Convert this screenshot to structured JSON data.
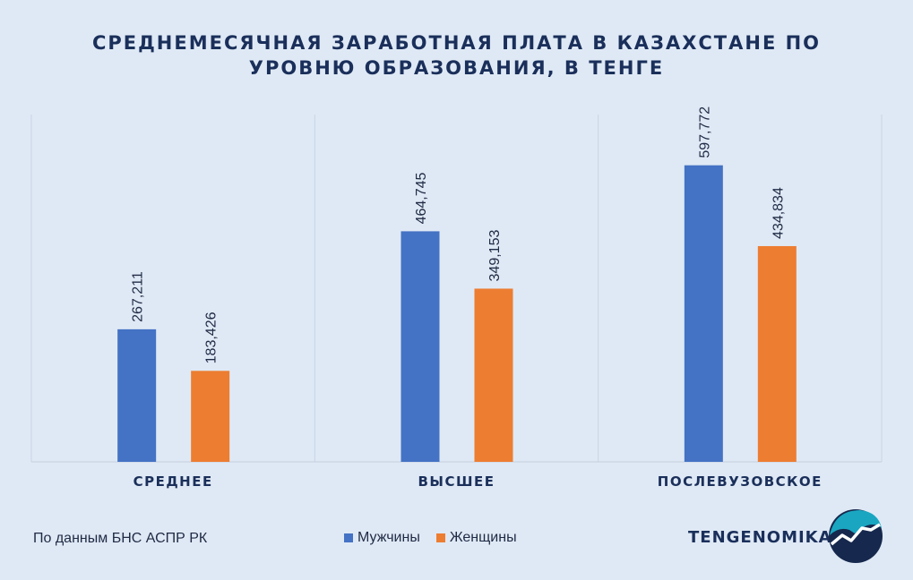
{
  "title_lines": [
    "СРЕДНЕМЕСЯЧНАЯ ЗАРАБОТНАЯ ПЛАТА В КАЗАХСТАНЕ ПО",
    "УРОВНЮ ОБРАЗОВАНИЯ, В ТЕНГЕ"
  ],
  "source": "По данным БНС АСПР РК",
  "brand": "TENGENOMIKA",
  "chart_data": {
    "type": "bar",
    "title": "СРЕДНЕМЕСЯЧНАЯ ЗАРАБОТНАЯ ПЛАТА В КАЗАХСТАНЕ ПО УРОВНЮ ОБРАЗОВАНИЯ, В ТЕНГЕ",
    "categories": [
      "СРЕДНЕЕ",
      "ВЫСШЕЕ",
      "ПОСЛЕВУЗОВСКОЕ"
    ],
    "series": [
      {
        "name": "Мужчины",
        "color": "#4472c4",
        "values": [
          267211,
          464745,
          597772
        ],
        "labels": [
          "267,211",
          "464,745",
          "597,772"
        ]
      },
      {
        "name": "Женщины",
        "color": "#ed7d31",
        "values": [
          183426,
          349153,
          434834
        ],
        "labels": [
          "183,426",
          "349,153",
          "434,834"
        ]
      }
    ],
    "ylim": [
      0,
      700000
    ],
    "grid": false,
    "legend": "bottom-center",
    "xlabel": "",
    "ylabel": ""
  },
  "logo_colors": {
    "circle": "#16284d",
    "wave": "#1aa6c1",
    "line": "#ffffff"
  }
}
